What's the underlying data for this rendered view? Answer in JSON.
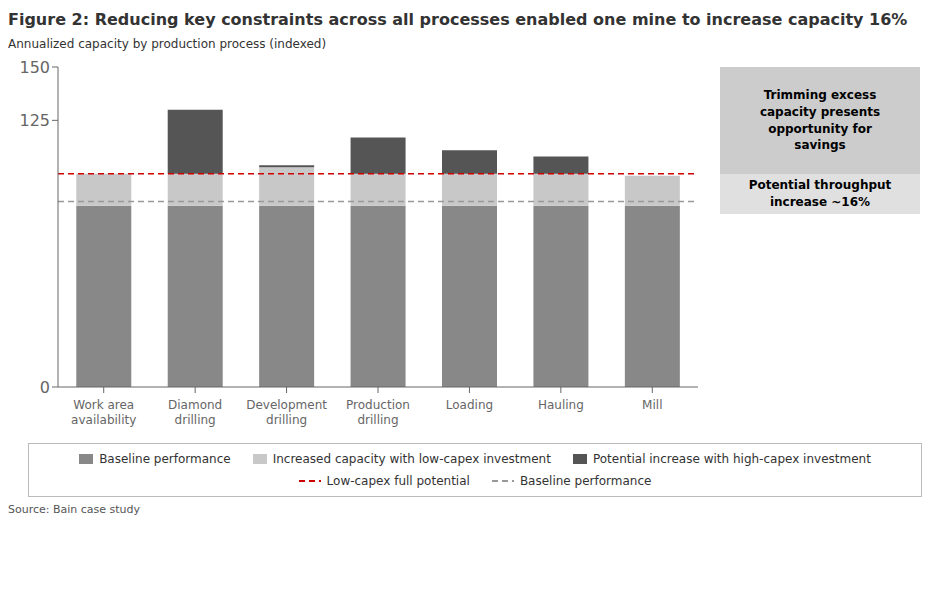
{
  "chart_data": {
    "type": "bar",
    "stacked": true,
    "title": "Figure 2: Reducing key constraints across all processes enabled one mine to increase capacity 16%",
    "y_label": "Annualized capacity by production process (indexed)",
    "categories": [
      "Work area\navailability",
      "Diamond\ndrilling",
      "Development\ndrilling",
      "Production\ndrilling",
      "Loading",
      "Hauling",
      "Mill"
    ],
    "series": [
      {
        "name": "Baseline performance",
        "color": "#888888",
        "values": [
          85,
          85,
          85,
          85,
          85,
          85,
          85
        ]
      },
      {
        "name": "Increased capacity with low-capex investment",
        "color": "#c8c8c8",
        "values": [
          15,
          15,
          18,
          15,
          15,
          15,
          14
        ]
      },
      {
        "name": "Potential increase with high-capex investment",
        "color": "#555555",
        "values": [
          0,
          30,
          1,
          17,
          11,
          8,
          0
        ]
      }
    ],
    "reference_lines": [
      {
        "name": "Low-capex full potential",
        "value": 100,
        "color": "#cc0000",
        "line_style": "dashed"
      },
      {
        "name": "Baseline performance",
        "value": 87,
        "color": "#999999",
        "line_style": "dashed"
      }
    ],
    "annotations": [
      "Trimming excess\ncapacity presents\nopportunity for\nsavings",
      "Potential throughput\nincrease ~16%",
      "Source: Bain case study"
    ],
    "ylim": [
      0,
      150
    ],
    "yticks": [
      0,
      125,
      150
    ],
    "grid": false,
    "legend": "bottom"
  }
}
